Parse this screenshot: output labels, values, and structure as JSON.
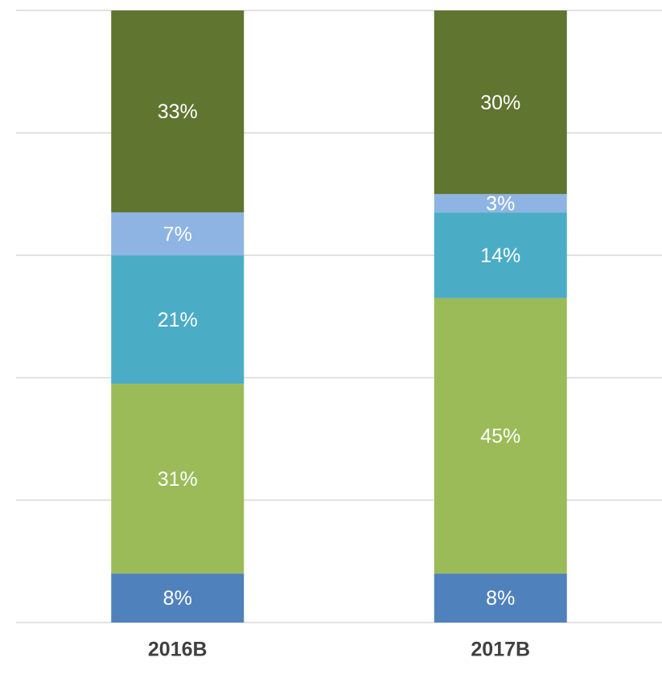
{
  "chart_data": {
    "type": "stacked_bar",
    "categories": [
      "2016B",
      "2017B"
    ],
    "series": [
      {
        "color": "#4f81bd",
        "values": [
          8,
          8
        ],
        "value_labels": [
          "8%",
          "8%"
        ]
      },
      {
        "color": "#9bbb59",
        "values": [
          31,
          45
        ],
        "value_labels": [
          "31%",
          "45%"
        ]
      },
      {
        "color": "#4bacc6",
        "values": [
          21,
          14
        ],
        "value_labels": [
          "21%",
          "14%"
        ]
      },
      {
        "color": "#8eb4e3",
        "values": [
          7,
          3
        ],
        "value_labels": [
          "7%",
          "3%"
        ]
      },
      {
        "color": "#5f7530",
        "values": [
          33,
          30
        ],
        "value_labels": [
          "33%",
          "30%"
        ]
      }
    ],
    "ylim": [
      0,
      100
    ],
    "yticks": [
      0,
      20,
      40,
      60,
      80,
      100
    ],
    "grid": true
  }
}
